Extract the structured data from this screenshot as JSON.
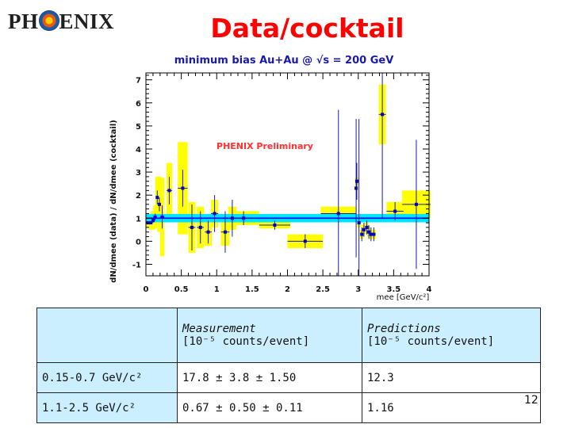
{
  "logo_text": "PHENIX",
  "slide_title": "Data/cocktail",
  "page_number": "12",
  "chart_data": {
    "type": "scatter",
    "title": "minimum bias Au+Au @ √s = 200 GeV",
    "annotation": "PHENIX Preliminary",
    "xlabel": "mee [GeV/c²]",
    "ylabel": "dN/dmee (data) / dN/dmee (cocktail)",
    "xlim": [
      0,
      4
    ],
    "ylim": [
      -1.5,
      7.3
    ],
    "x_ticks": [
      "0",
      "0.5",
      "1",
      "1.5",
      "2",
      "2.5",
      "3",
      "3.5",
      "4"
    ],
    "y_ticks": [
      "-1",
      "0",
      "1",
      "2",
      "3",
      "4",
      "5",
      "6",
      "7"
    ],
    "grid": false,
    "reference_band": {
      "center": 1.0,
      "half_width": 0.18,
      "color": "#00e5ff"
    },
    "reference_line": {
      "y": 1.0,
      "color": "#0000ff"
    },
    "points": [
      {
        "x": 0.03,
        "y": 0.8,
        "dx": 0.03,
        "ey": 0.05,
        "sys": 0.2
      },
      {
        "x": 0.07,
        "y": 0.8,
        "dx": 0.02,
        "ey": 0.05,
        "sys": 0.3
      },
      {
        "x": 0.1,
        "y": 0.9,
        "dx": 0.02,
        "ey": 0.1,
        "sys": 0.4
      },
      {
        "x": 0.13,
        "y": 1.05,
        "dx": 0.02,
        "ey": 0.15,
        "sys": 0.5
      },
      {
        "x": 0.16,
        "y": 1.9,
        "dx": 0.02,
        "ey": 0.3,
        "sys": 0.9
      },
      {
        "x": 0.19,
        "y": 1.6,
        "dx": 0.02,
        "ey": 0.3,
        "sys": 1.2
      },
      {
        "x": 0.23,
        "y": 1.05,
        "dx": 0.03,
        "ey": 0.5,
        "sys": 1.7
      },
      {
        "x": 0.33,
        "y": 2.2,
        "dx": 0.04,
        "ey": 0.6,
        "sys": 1.2
      },
      {
        "x": 0.52,
        "y": 2.3,
        "dx": 0.07,
        "ey": 0.8,
        "sys": 2.0
      },
      {
        "x": 0.65,
        "y": 0.6,
        "dx": 0.05,
        "ey": 1.0,
        "sys": 1.1
      },
      {
        "x": 0.77,
        "y": 0.6,
        "dx": 0.05,
        "ey": 0.7,
        "sys": 0.9
      },
      {
        "x": 0.88,
        "y": 0.4,
        "dx": 0.05,
        "ey": 0.5,
        "sys": 0.6
      },
      {
        "x": 0.97,
        "y": 1.2,
        "dx": 0.05,
        "ey": 0.8,
        "sys": 0.6
      },
      {
        "x": 1.12,
        "y": 0.4,
        "dx": 0.06,
        "ey": 0.9,
        "sys": 0.6
      },
      {
        "x": 1.22,
        "y": 1.0,
        "dx": 0.06,
        "ey": 0.8,
        "sys": 0.5
      },
      {
        "x": 1.38,
        "y": 1.0,
        "dx": 0.22,
        "ey": 0.3,
        "sys": 0.3
      },
      {
        "x": 1.82,
        "y": 0.7,
        "dx": 0.22,
        "ey": 0.2,
        "sys": 0.15
      },
      {
        "x": 2.25,
        "y": 0.0,
        "dx": 0.25,
        "ey": 0.3,
        "sys": 0.3
      },
      {
        "x": 2.72,
        "y": 1.2,
        "dx": 0.25,
        "ey": 4.5,
        "sys": 0.3
      },
      {
        "x": 2.97,
        "y": 2.3,
        "dx": 0.01,
        "ey": 3.0,
        "sys": 0.1
      },
      {
        "x": 2.98,
        "y": 2.6,
        "dx": 0.01,
        "ey": 0.8,
        "sys": 0.15
      },
      {
        "x": 3.01,
        "y": 0.8,
        "dx": 0.02,
        "ey": 4.5,
        "sys": 0.2
      },
      {
        "x": 3.05,
        "y": 0.3,
        "dx": 0.02,
        "ey": 0.3,
        "sys": 0.2
      },
      {
        "x": 3.08,
        "y": 0.5,
        "dx": 0.02,
        "ey": 0.3,
        "sys": 0.2
      },
      {
        "x": 3.12,
        "y": 0.6,
        "dx": 0.02,
        "ey": 0.3,
        "sys": 0.2
      },
      {
        "x": 3.15,
        "y": 0.4,
        "dx": 0.02,
        "ey": 0.3,
        "sys": 0.2
      },
      {
        "x": 3.18,
        "y": 0.3,
        "dx": 0.02,
        "ey": 0.3,
        "sys": 0.2
      },
      {
        "x": 3.22,
        "y": 0.3,
        "dx": 0.02,
        "ey": 0.3,
        "sys": 0.2
      },
      {
        "x": 3.34,
        "y": 5.5,
        "dx": 0.05,
        "ey": 4.5,
        "sys": 1.3
      },
      {
        "x": 3.52,
        "y": 1.3,
        "dx": 0.12,
        "ey": 0.4,
        "sys": 0.4
      },
      {
        "x": 3.82,
        "y": 1.6,
        "dx": 0.2,
        "ey": 2.8,
        "sys": 0.6
      }
    ]
  },
  "table": {
    "header": {
      "measurement_line1": "Measurement",
      "measurement_line2": "[10⁻⁵ counts/event]",
      "predictions_line1": "Predictions",
      "predictions_line2": "[10⁻⁵ counts/event]"
    },
    "rows": [
      {
        "range": "0.15-0.7 GeV/c²",
        "measurement": "17.8 ± 3.8 ± 1.50",
        "prediction": "12.3"
      },
      {
        "range": "1.1-2.5 GeV/c²",
        "measurement": "0.67 ± 0.50 ± 0.11",
        "prediction": "1.16"
      }
    ]
  }
}
